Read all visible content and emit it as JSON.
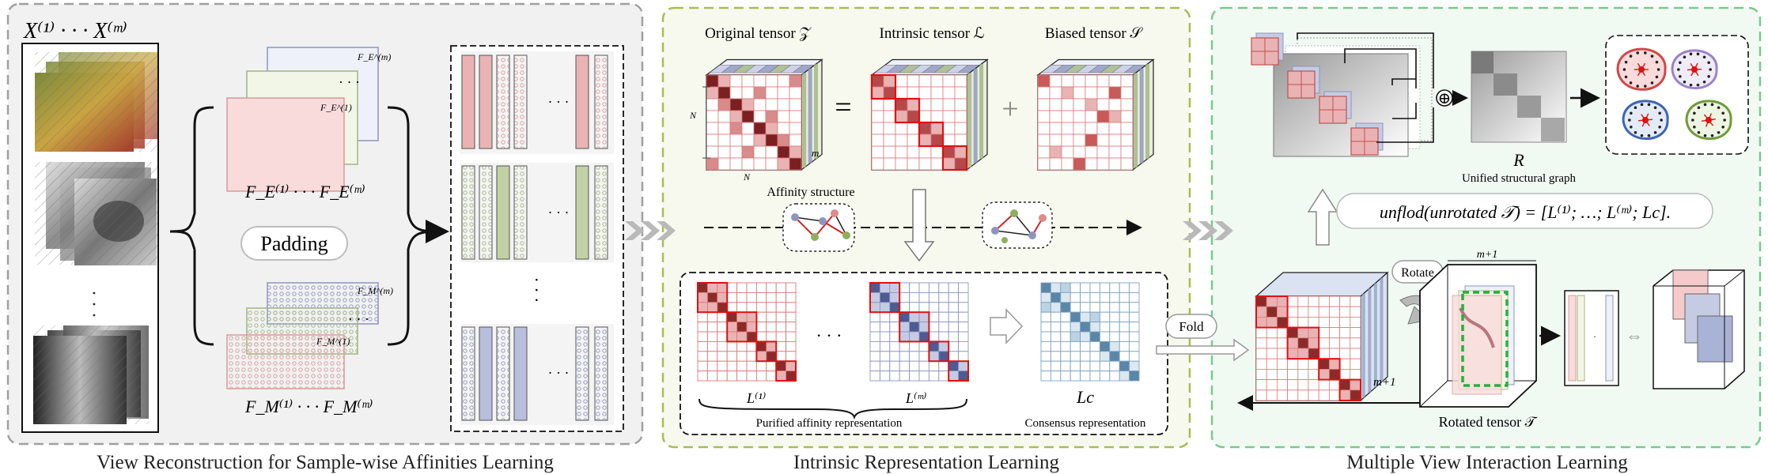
{
  "panels": {
    "left": {
      "title": "View Reconstruction for Sample-wise Affinities Learning",
      "input_label": "X⁽¹⁾ · · · X⁽ᵐ⁾",
      "feat_e_small_top": "F_E^(m)",
      "feat_e_small_bottom": "F_E^(1)",
      "feat_e_label": "F_E⁽¹⁾   · · ·   F_E⁽ᵐ⁾",
      "padding_label": "Padding",
      "feat_m_small_top": "F_M^(m)",
      "feat_m_small_bottom": "F_M^(1)",
      "feat_m_label": "F_M⁽¹⁾   · · ·   F_M⁽ᵐ⁾",
      "dots": "· · ·"
    },
    "middle": {
      "title": "Intrinsic Representation Learning",
      "original_tensor": "Original tensor 𝒵",
      "intrinsic_tensor": "Intrinsic tensor ℒ",
      "biased_tensor": "Biased tensor 𝒮",
      "dim_n1": "N",
      "dim_n2": "N",
      "dim_m": "m",
      "equals": "=",
      "plus": "+",
      "affinity_structure": "Affinity structure",
      "l1_label": "L⁽¹⁾",
      "lm_label": "L⁽ᵐ⁾",
      "lc_label": "Lc",
      "purified_label": "Purified affinity representation",
      "consensus_label": "Consensus representation",
      "dots": "· · ·"
    },
    "right": {
      "title": "Multiple View Interaction Learning",
      "fold_label": "Fold",
      "rotate_label": "Rotate",
      "m_plus_1_a": "m+1",
      "m_plus_1_b": "m+1",
      "rotated_tensor": "Rotated tensor 𝒯",
      "unfold_formula": "unflod(unrotated 𝒯) = [L⁽¹⁾; …; L⁽ᵐ⁾; Lc].",
      "r_label": "R",
      "unified_graph": "Unified structural graph",
      "oplus": "⊕",
      "dots": "·"
    }
  }
}
